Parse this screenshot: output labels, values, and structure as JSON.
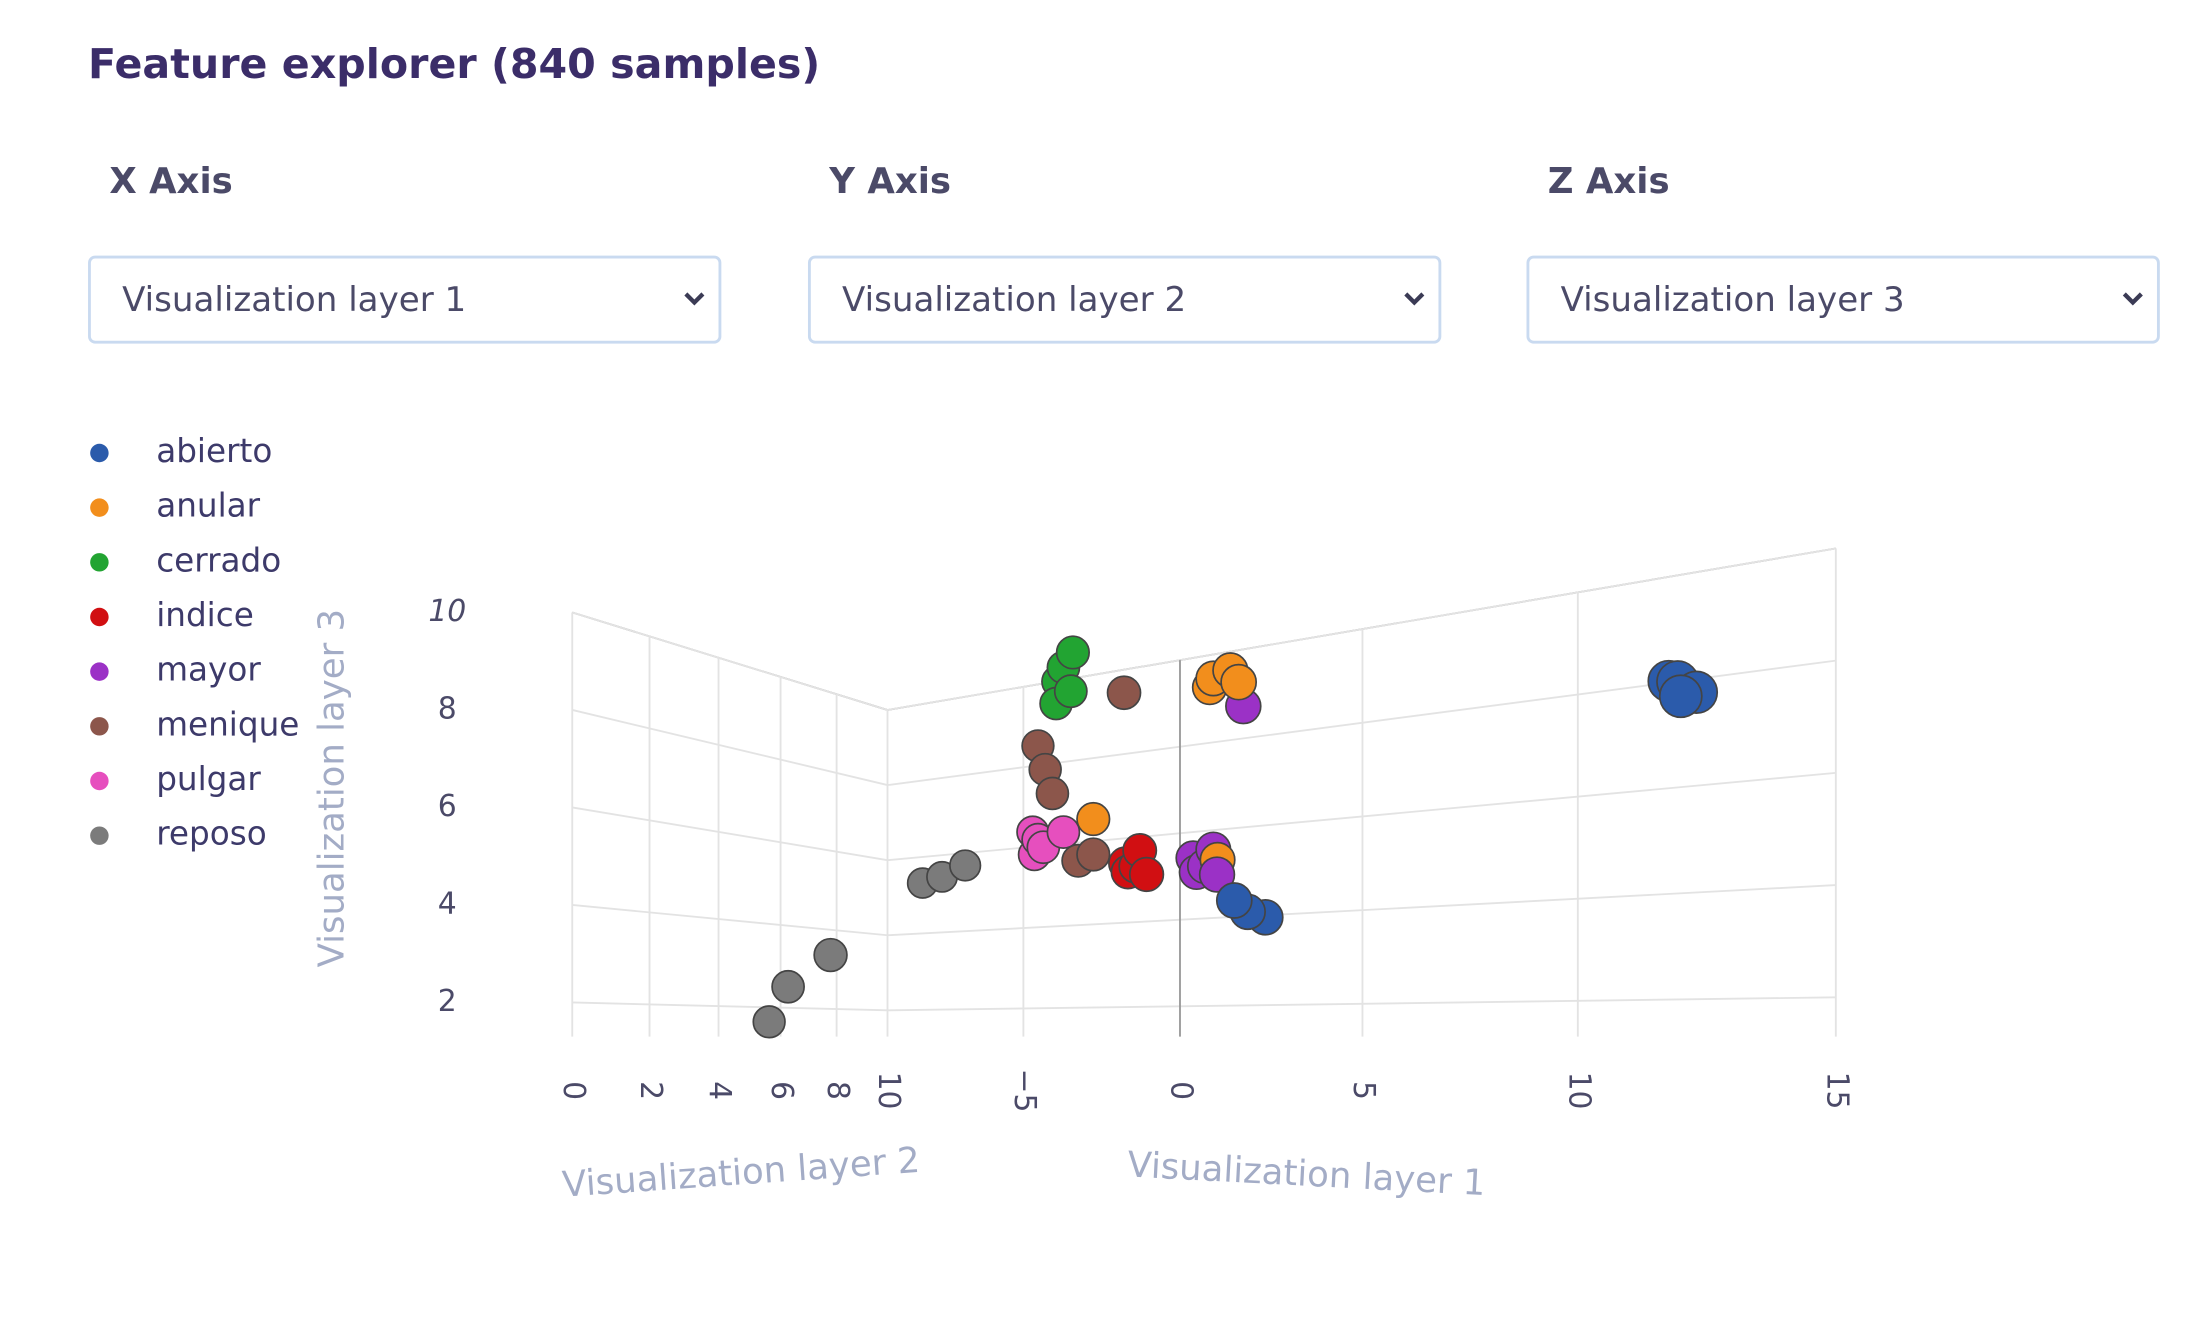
{
  "header": {
    "title": "Feature explorer (840 samples)"
  },
  "controls": [
    {
      "label": "X Axis",
      "selected": "Visualization layer 1"
    },
    {
      "label": "Y Axis",
      "selected": "Visualization layer 2"
    },
    {
      "label": "Z Axis",
      "selected": "Visualization layer 3"
    }
  ],
  "chart_data": {
    "type": "scatter3d",
    "x_label": "Visualization layer 1",
    "y_label": "Visualization layer 2",
    "z_label": "Visualization layer 3",
    "xlim": [
      -10,
      15
    ],
    "ylim": [
      0,
      10
    ],
    "zlim": [
      1.3,
      10
    ],
    "xticks": [
      {
        "value": -5,
        "label": "−5"
      },
      0,
      5,
      10,
      15
    ],
    "yticks": [
      0,
      2,
      4,
      6,
      8,
      10
    ],
    "zticks": [
      2,
      4,
      6,
      8,
      10
    ],
    "grid": true,
    "legend": "top-left",
    "series": [
      {
        "name": "abierto",
        "color": "#2b5bab",
        "x": [
          12.9,
          13.2,
          12.7,
          13.0,
          4.6,
          4.9,
          4.4
        ],
        "y": [
          5,
          5,
          5.3,
          4.7,
          5,
          5.2,
          4.8
        ],
        "z": [
          6.8,
          6.6,
          6.9,
          6.5,
          3.6,
          3.5,
          3.8
        ]
      },
      {
        "name": "anular",
        "color": "#f28e1c",
        "x": [
          3.8,
          4.2,
          4.5,
          3.6,
          0.8,
          3.9
        ],
        "y": [
          5,
          5,
          4.8,
          5.2,
          5,
          5
        ],
        "z": [
          8.0,
          8.1,
          7.8,
          7.9,
          5.6,
          4.6
        ]
      },
      {
        "name": "cerrado",
        "color": "#22a432",
        "x": [
          0.0,
          -0.3,
          0.4,
          0.2,
          -0.2
        ],
        "y": [
          5,
          5.2,
          4.8,
          5,
          5
        ],
        "z": [
          8.7,
          8.5,
          8.9,
          8.2,
          8.0
        ]
      },
      {
        "name": "indice",
        "color": "#d10f12",
        "x": [
          1.9,
          1.5,
          2.3,
          2.0,
          1.7
        ],
        "y": [
          5,
          5.2,
          4.8,
          5,
          5
        ],
        "z": [
          4.6,
          4.7,
          4.4,
          4.9,
          4.5
        ]
      },
      {
        "name": "mayor",
        "color": "#9b31c6",
        "x": [
          3.6,
          3.2,
          4.0,
          3.8,
          3.4,
          4.5
        ],
        "y": [
          5,
          5.2,
          4.8,
          5,
          5,
          5
        ],
        "z": [
          4.5,
          4.7,
          4.3,
          4.8,
          4.4,
          7.4
        ]
      },
      {
        "name": "menique",
        "color": "#8c564b",
        "x": [
          -0.5,
          -0.7,
          -0.3,
          0.4,
          0.8,
          1.6
        ],
        "y": [
          5,
          5,
          5,
          5,
          5,
          5
        ],
        "z": [
          6.7,
          7.2,
          6.2,
          4.8,
          4.9,
          8.0
        ]
      },
      {
        "name": "pulgar",
        "color": "#e64fbe",
        "x": [
          -0.7,
          -1.0,
          -0.4,
          -0.8,
          0.0
        ],
        "y": [
          5,
          5.2,
          4.8,
          5,
          5
        ],
        "z": [
          5.3,
          5.5,
          5.1,
          5.0,
          5.4
        ]
      },
      {
        "name": "reposo",
        "color": "#7b7b7b",
        "x": [
          -4.1,
          -3.5,
          -2.8,
          -4.0,
          -5.3,
          -5.9
        ],
        "y": [
          5,
          5,
          5,
          2,
          2,
          2
        ],
        "z": [
          4.6,
          4.7,
          4.9,
          2.9,
          2.3,
          1.6
        ]
      }
    ]
  }
}
